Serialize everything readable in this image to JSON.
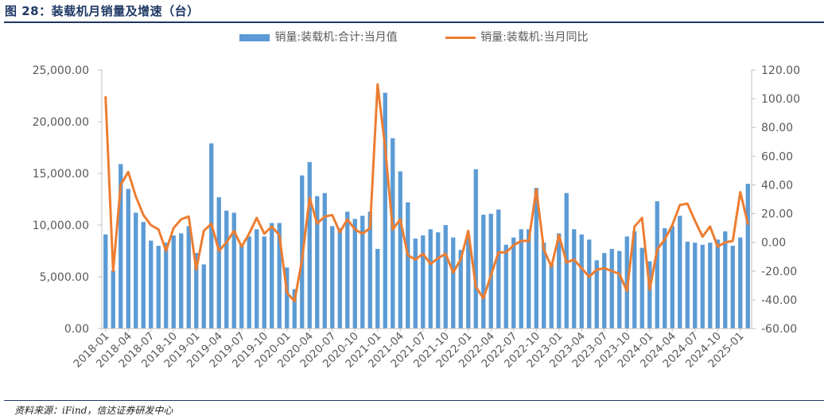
{
  "figure": {
    "title": "图 28：装载机月销量及增速（台）",
    "source": "资料来源：iFind，信达证券研发中心"
  },
  "colors": {
    "bar": "#5b9bd5",
    "line": "#ed7d31",
    "axis": "#bfbfbf",
    "text": "#595959",
    "title": "#1f3864"
  },
  "chart_data": {
    "type": "bar",
    "secondary_type": "line",
    "title": "",
    "xlabel": "",
    "ylabel": "",
    "legend_position": "top",
    "grid": false,
    "ylim": [
      0,
      25000
    ],
    "y2lim": [
      -60,
      120
    ],
    "y_ticks": [
      "25,000.00",
      "20,000.00",
      "15,000.00",
      "10,000.00",
      "5,000.00",
      "0.00"
    ],
    "y_tick_values": [
      25000,
      20000,
      15000,
      10000,
      5000,
      0
    ],
    "y2_ticks": [
      "120.00",
      "100.00",
      "80.00",
      "60.00",
      "40.00",
      "20.00",
      "0.00",
      "-20.00",
      "-40.00",
      "-60.00"
    ],
    "y2_tick_values": [
      120,
      100,
      80,
      60,
      40,
      20,
      0,
      -20,
      -40,
      -60
    ],
    "x_tick_labels": [
      "2018-01",
      "2018-04",
      "2018-07",
      "2018-10",
      "2019-01",
      "2019-04",
      "2019-07",
      "2019-10",
      "2020-01",
      "2020-04",
      "2020-07",
      "2020-10",
      "2021-01",
      "2021-04",
      "2021-07",
      "2021-10",
      "2022-01",
      "2022-04",
      "2022-07",
      "2022-10",
      "2023-01",
      "2023-04",
      "2023-07",
      "2023-10",
      "2024-01",
      "2024-04",
      "2024-07",
      "2024-10",
      "2025-01"
    ],
    "x_tick_every": 3,
    "series": [
      {
        "name": "销量:装载机:合计:当月值",
        "type": "bar",
        "axis": "left",
        "values": [
          9100,
          5600,
          15900,
          13500,
          11200,
          10300,
          8500,
          8000,
          8300,
          9000,
          9200,
          9900,
          7300,
          6200,
          17900,
          12700,
          11400,
          11200,
          8100,
          8900,
          9600,
          8900,
          10200,
          10200,
          5900,
          3800,
          14800,
          16100,
          12800,
          13100,
          9900,
          9700,
          11300,
          10600,
          10900,
          11300,
          7700,
          22800,
          18400,
          15200,
          12200,
          8700,
          9000,
          9600,
          9300,
          10000,
          8800,
          7600,
          9000,
          15400,
          11000,
          11100,
          11500,
          8100,
          8800,
          9600,
          9600,
          13600,
          8300,
          6300,
          9200,
          13100,
          9600,
          9100,
          8600,
          6600,
          7300,
          7700,
          7500,
          8900,
          9400,
          7800,
          6500,
          12300,
          9700,
          9900,
          10900,
          8400,
          8300,
          8100,
          8300,
          8600,
          9400,
          8000,
          8800,
          14000
        ]
      },
      {
        "name": "销量:装载机:当月同比",
        "type": "line",
        "axis": "right",
        "values": [
          101,
          -20,
          40,
          49,
          32,
          19,
          12,
          9,
          -6,
          10,
          16,
          18,
          -19,
          8,
          13,
          -6,
          0,
          8,
          -3,
          6,
          17,
          6,
          11,
          5,
          -35,
          -41,
          -12,
          31,
          13,
          18,
          19,
          7,
          16,
          9,
          6,
          10,
          110,
          66,
          9,
          16,
          -9,
          -12,
          -8,
          -15,
          -11,
          -8,
          -21,
          -12,
          8,
          -31,
          -39,
          -23,
          -7,
          -7,
          -2,
          1,
          1,
          37,
          -5,
          -17,
          5,
          -14,
          -12,
          -18,
          -24,
          -19,
          -18,
          -20,
          -22,
          -34,
          11,
          17,
          -33,
          -5,
          2,
          12,
          26,
          27,
          15,
          4,
          11,
          -3,
          0,
          1,
          35,
          13
        ]
      }
    ]
  }
}
